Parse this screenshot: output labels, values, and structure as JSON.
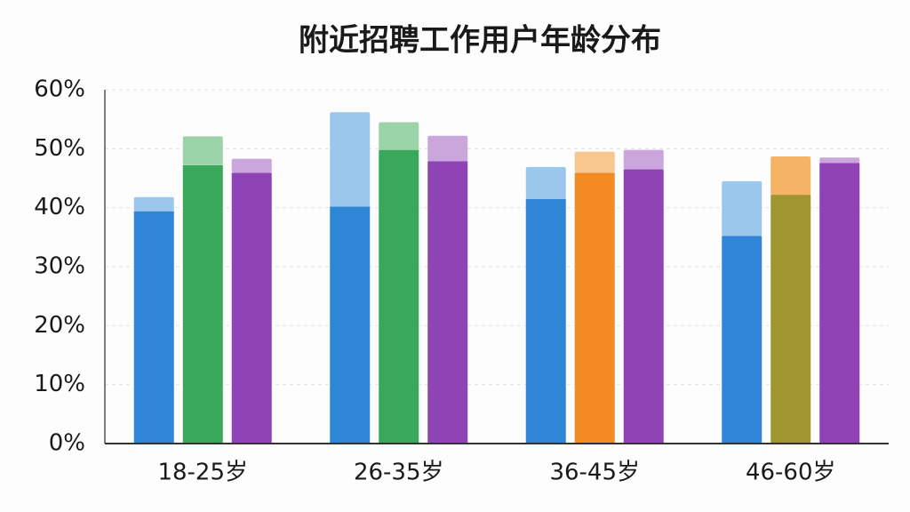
{
  "chart_data": {
    "type": "bar",
    "title": "附近招聘工作用户年龄分布",
    "categories": [
      "18-25岁",
      "26-35岁",
      "36-45岁",
      "46-60岁"
    ],
    "series": [
      {
        "colors": [
          "#2f86d6",
          "#2f86d6",
          "#2f86d6",
          "#2f86d6"
        ],
        "values": [
          39.4,
          40.2,
          41.5,
          35.2
        ],
        "light_colors": [
          "#9cc7ec",
          "#9cc7ec",
          "#9cc7ec",
          "#9cc7ec"
        ],
        "light_values": [
          2.4,
          16.0,
          5.4,
          9.3
        ]
      },
      {
        "colors": [
          "#3aa85a",
          "#3aa85a",
          "#f38a24",
          "#a0952f"
        ],
        "values": [
          47.2,
          49.8,
          45.9,
          42.2
        ],
        "light_colors": [
          "#9ad3a8",
          "#9ad3a8",
          "#f8c68f",
          "#f5b465"
        ],
        "light_values": [
          4.9,
          4.7,
          3.6,
          6.5
        ]
      },
      {
        "colors": [
          "#8e44b5",
          "#8e44b5",
          "#8e44b5",
          "#8e44b5"
        ],
        "values": [
          45.9,
          47.9,
          46.5,
          47.6
        ],
        "light_colors": [
          "#cba6dd",
          "#cba6dd",
          "#cba6dd",
          "#cba6dd"
        ],
        "light_values": [
          2.4,
          4.3,
          3.3,
          0.9
        ]
      }
    ],
    "ylim": [
      0,
      60
    ],
    "yticks": [
      {
        "value": 0,
        "label": "0%"
      },
      {
        "value": 10,
        "label": "10%"
      },
      {
        "value": 20,
        "label": "20%"
      },
      {
        "value": 30,
        "label": "30%"
      },
      {
        "value": 40,
        "label": "40%"
      },
      {
        "value": 50,
        "label": "50%"
      },
      {
        "value": 60,
        "label": "60%"
      }
    ],
    "grid": true
  }
}
